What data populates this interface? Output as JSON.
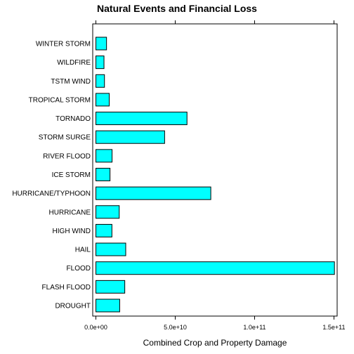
{
  "chart_data": {
    "type": "bar",
    "orientation": "horizontal",
    "title": "Natural Events and Financial Loss",
    "xlabel": "Combined Crop and Property Damage",
    "ylabel": "",
    "categories": [
      "DROUGHT",
      "FLASH FLOOD",
      "FLOOD",
      "HAIL",
      "HIGH WIND",
      "HURRICANE",
      "HURRICANE/TYPHOON",
      "ICE STORM",
      "RIVER FLOOD",
      "STORM SURGE",
      "TORNADO",
      "TROPICAL STORM",
      "TSTM WIND",
      "WILDFIRE",
      "WINTER STORM"
    ],
    "values": [
      15000000000,
      18200000000,
      150300000000,
      18800000000,
      10100000000,
      14700000000,
      72400000000,
      8900000000,
      10200000000,
      43300000000,
      57400000000,
      8400000000,
      5400000000,
      5100000000,
      6700000000
    ],
    "xlim": [
      -2000000000,
      152000000000
    ],
    "xticks": [
      0,
      50000000000,
      100000000000,
      150000000000
    ],
    "xtick_labels": [
      "0.0e+00",
      "5.0e+10",
      "1.0e+11",
      "1.5e+11"
    ],
    "colors": {
      "bar_fill": "#00FFFF",
      "bar_stroke": "#000000"
    },
    "grid": false,
    "legend": "none"
  }
}
